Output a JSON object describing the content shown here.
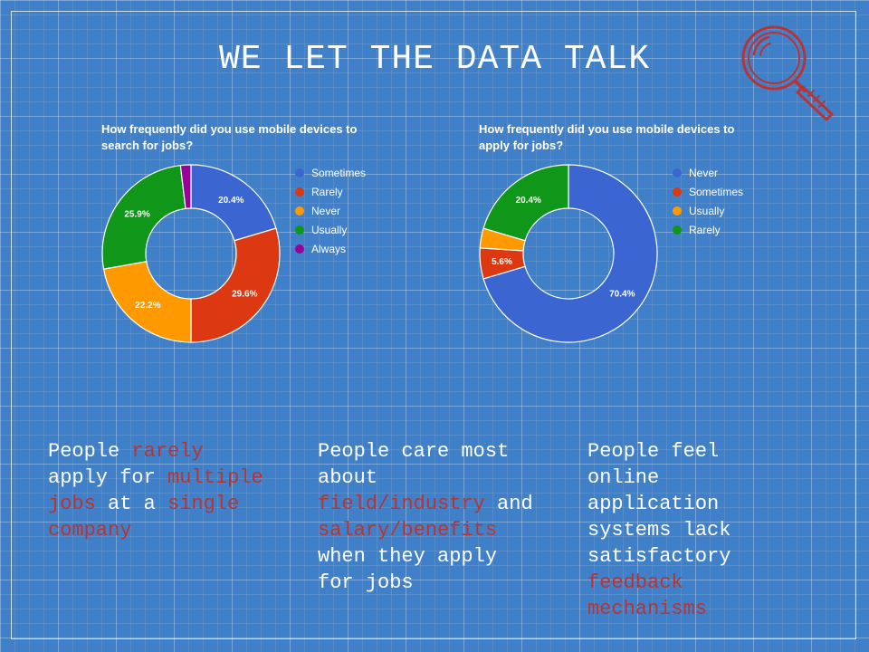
{
  "title": "WE LET THE DATA TALK",
  "colors": {
    "background": "#4080c8",
    "highlight": "#b83434",
    "magnifier": "#b83434"
  },
  "icons": {
    "magnifier": "magnifying-glass-icon"
  },
  "chart_data": [
    {
      "type": "pie",
      "donut": true,
      "title": "How frequently did you use mobile devices to search for jobs?",
      "legend_position": "right",
      "slices": [
        {
          "label": "Sometimes",
          "value": 20.4,
          "display": "20.4%",
          "color": "#3b66d1"
        },
        {
          "label": "Rarely",
          "value": 29.6,
          "display": "29.6%",
          "color": "#dc3912"
        },
        {
          "label": "Never",
          "value": 22.2,
          "display": "22.2%",
          "color": "#ff9900"
        },
        {
          "label": "Usually",
          "value": 25.9,
          "display": "25.9%",
          "color": "#109618"
        },
        {
          "label": "Always",
          "value": 1.9,
          "display": "",
          "color": "#990099"
        }
      ]
    },
    {
      "type": "pie",
      "donut": true,
      "title": "How frequently did you use mobile devices to apply for jobs?",
      "legend_position": "right",
      "slices": [
        {
          "label": "Never",
          "value": 70.4,
          "display": "70.4%",
          "color": "#3b66d1"
        },
        {
          "label": "Sometimes",
          "value": 5.6,
          "display": "5.6%",
          "color": "#dc3912"
        },
        {
          "label": "Usually",
          "value": 3.6,
          "display": "",
          "color": "#ff9900"
        },
        {
          "label": "Rarely",
          "value": 20.4,
          "display": "20.4%",
          "color": "#109618"
        }
      ]
    }
  ],
  "takeaways": [
    [
      {
        "text": "People ",
        "hl": false
      },
      {
        "text": "rarely",
        "hl": true
      },
      {
        "text": " apply for ",
        "hl": false
      },
      {
        "text": "multiple jobs",
        "hl": true
      },
      {
        "text": " at a ",
        "hl": false
      },
      {
        "text": "single company",
        "hl": true
      }
    ],
    [
      {
        "text": "People care most about ",
        "hl": false
      },
      {
        "text": "field/industry",
        "hl": true
      },
      {
        "text": " and ",
        "hl": false
      },
      {
        "text": "salary/benefits",
        "hl": true
      },
      {
        "text": " when they apply for jobs",
        "hl": false
      }
    ],
    [
      {
        "text": "People feel online application systems lack satisfactory ",
        "hl": false
      },
      {
        "text": "feedback mechanisms",
        "hl": true
      }
    ]
  ]
}
